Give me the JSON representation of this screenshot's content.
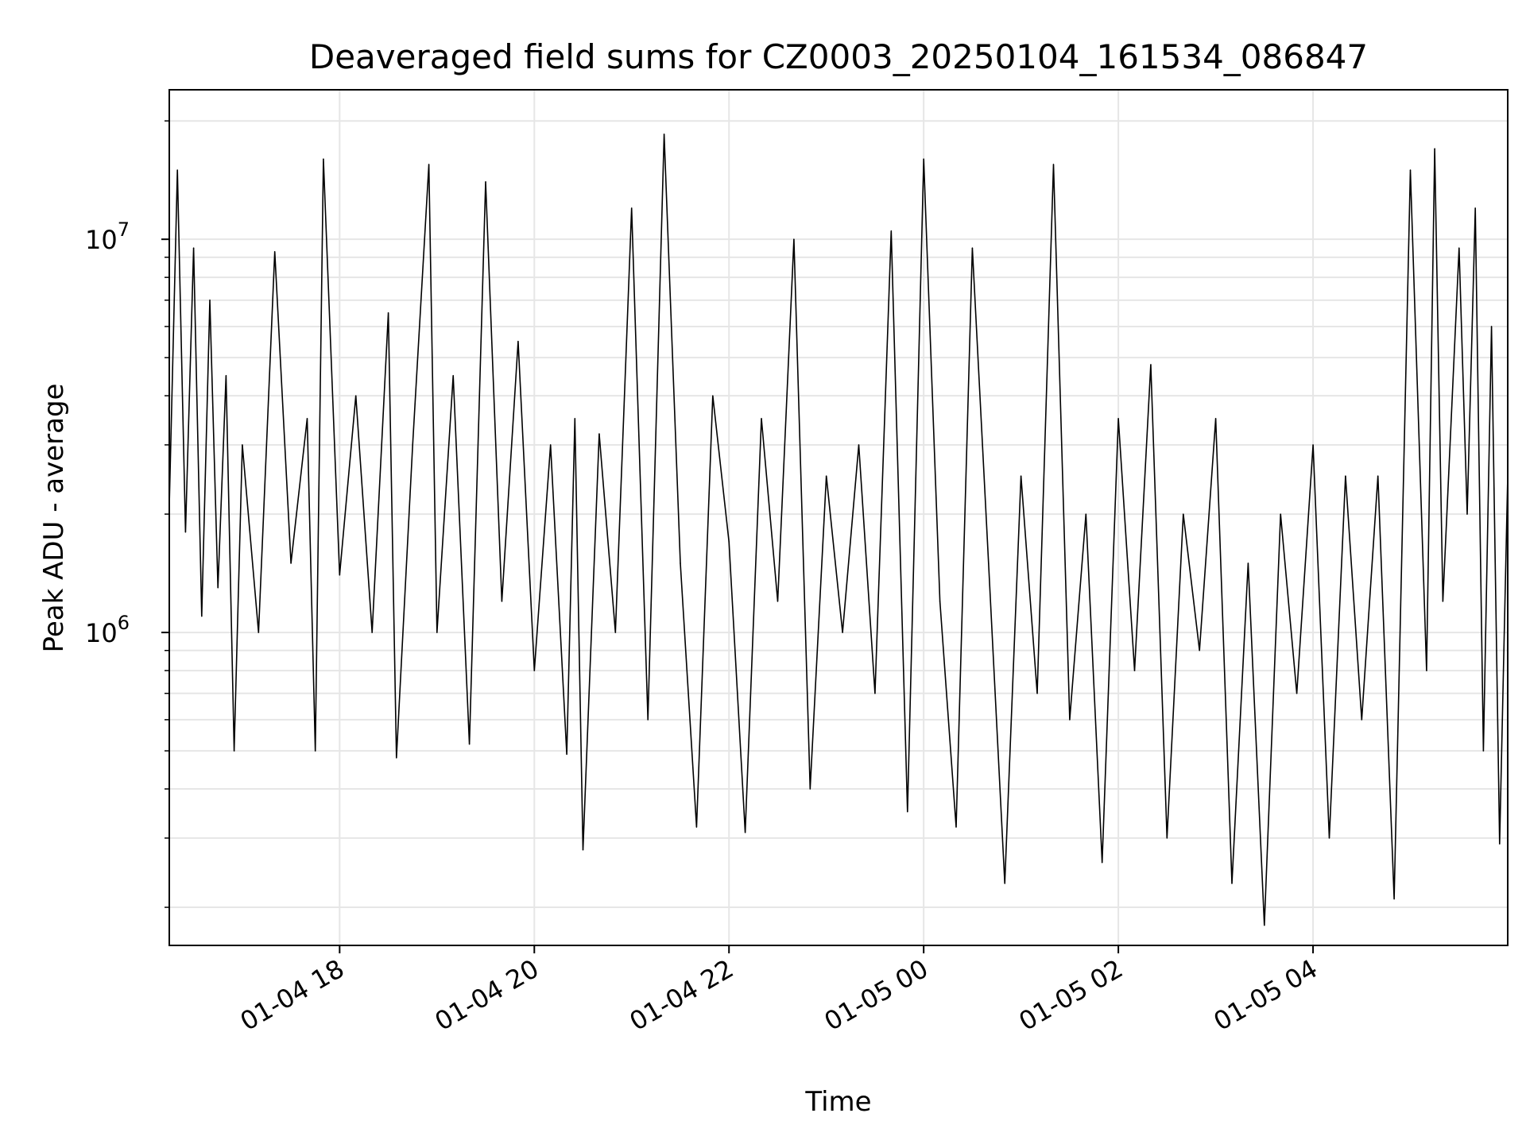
{
  "chart_data": {
    "type": "line",
    "title": "Deaveraged field sums for CZ0003_20250104_161534_086847",
    "xlabel": "Time",
    "ylabel": "Peak ADU - average",
    "yscale": "log",
    "ylim": [
      160000,
      24000000
    ],
    "xlim": [
      "2025-01-04 16:15",
      "2025-01-05 06:00"
    ],
    "grid": true,
    "x_ticks": [
      {
        "t": "2025-01-04 18:00",
        "label": "01-04 18"
      },
      {
        "t": "2025-01-04 20:00",
        "label": "01-04 20"
      },
      {
        "t": "2025-01-04 22:00",
        "label": "01-04 22"
      },
      {
        "t": "2025-01-05 00:00",
        "label": "01-05 00"
      },
      {
        "t": "2025-01-05 02:00",
        "label": "01-05 02"
      },
      {
        "t": "2025-01-05 04:00",
        "label": "01-05 04"
      }
    ],
    "y_ticks": [
      {
        "value": 1000000,
        "base": "10",
        "exp": "6"
      },
      {
        "value": 10000000,
        "base": "10",
        "exp": "7"
      }
    ],
    "series": [
      {
        "color": "#000000",
        "points": [
          [
            "2025-01-04 16:15",
            2100000
          ],
          [
            "2025-01-04 16:20",
            15000000
          ],
          [
            "2025-01-04 16:25",
            1800000
          ],
          [
            "2025-01-04 16:30",
            9500000
          ],
          [
            "2025-01-04 16:35",
            1100000
          ],
          [
            "2025-01-04 16:40",
            7000000
          ],
          [
            "2025-01-04 16:45",
            1300000
          ],
          [
            "2025-01-04 16:50",
            4500000
          ],
          [
            "2025-01-04 16:55",
            500000
          ],
          [
            "2025-01-04 17:00",
            3000000
          ],
          [
            "2025-01-04 17:10",
            1000000
          ],
          [
            "2025-01-04 17:20",
            9300000
          ],
          [
            "2025-01-04 17:30",
            1500000
          ],
          [
            "2025-01-04 17:40",
            3500000
          ],
          [
            "2025-01-04 17:45",
            500000
          ],
          [
            "2025-01-04 17:50",
            16000000
          ],
          [
            "2025-01-04 18:00",
            1400000
          ],
          [
            "2025-01-04 18:10",
            4000000
          ],
          [
            "2025-01-04 18:20",
            1000000
          ],
          [
            "2025-01-04 18:30",
            6500000
          ],
          [
            "2025-01-04 18:35",
            480000
          ],
          [
            "2025-01-04 18:45",
            3000000
          ],
          [
            "2025-01-04 18:55",
            15500000
          ],
          [
            "2025-01-04 19:00",
            1000000
          ],
          [
            "2025-01-04 19:10",
            4500000
          ],
          [
            "2025-01-04 19:20",
            520000
          ],
          [
            "2025-01-04 19:30",
            14000000
          ],
          [
            "2025-01-04 19:40",
            1200000
          ],
          [
            "2025-01-04 19:50",
            5500000
          ],
          [
            "2025-01-04 20:00",
            800000
          ],
          [
            "2025-01-04 20:10",
            3000000
          ],
          [
            "2025-01-04 20:20",
            490000
          ],
          [
            "2025-01-04 20:25",
            3500000
          ],
          [
            "2025-01-04 20:30",
            280000
          ],
          [
            "2025-01-04 20:40",
            3200000
          ],
          [
            "2025-01-04 20:50",
            1000000
          ],
          [
            "2025-01-04 21:00",
            12000000
          ],
          [
            "2025-01-04 21:10",
            600000
          ],
          [
            "2025-01-04 21:20",
            18500000
          ],
          [
            "2025-01-04 21:30",
            1500000
          ],
          [
            "2025-01-04 21:40",
            320000
          ],
          [
            "2025-01-04 21:50",
            4000000
          ],
          [
            "2025-01-04 22:00",
            1700000
          ],
          [
            "2025-01-04 22:10",
            310000
          ],
          [
            "2025-01-04 22:20",
            3500000
          ],
          [
            "2025-01-04 22:30",
            1200000
          ],
          [
            "2025-01-04 22:40",
            10000000
          ],
          [
            "2025-01-04 22:50",
            400000
          ],
          [
            "2025-01-04 23:00",
            2500000
          ],
          [
            "2025-01-04 23:10",
            1000000
          ],
          [
            "2025-01-04 23:20",
            3000000
          ],
          [
            "2025-01-04 23:30",
            700000
          ],
          [
            "2025-01-04 23:40",
            10500000
          ],
          [
            "2025-01-04 23:50",
            350000
          ],
          [
            "2025-01-05 00:00",
            16000000
          ],
          [
            "2025-01-05 00:10",
            1200000
          ],
          [
            "2025-01-05 00:20",
            320000
          ],
          [
            "2025-01-05 00:30",
            9500000
          ],
          [
            "2025-01-05 00:40",
            1500000
          ],
          [
            "2025-01-05 00:50",
            230000
          ],
          [
            "2025-01-05 01:00",
            2500000
          ],
          [
            "2025-01-05 01:10",
            700000
          ],
          [
            "2025-01-05 01:20",
            15500000
          ],
          [
            "2025-01-05 01:30",
            600000
          ],
          [
            "2025-01-05 01:40",
            2000000
          ],
          [
            "2025-01-05 01:50",
            260000
          ],
          [
            "2025-01-05 02:00",
            3500000
          ],
          [
            "2025-01-05 02:10",
            800000
          ],
          [
            "2025-01-05 02:20",
            4800000
          ],
          [
            "2025-01-05 02:30",
            300000
          ],
          [
            "2025-01-05 02:40",
            2000000
          ],
          [
            "2025-01-05 02:50",
            900000
          ],
          [
            "2025-01-05 03:00",
            3500000
          ],
          [
            "2025-01-05 03:10",
            230000
          ],
          [
            "2025-01-05 03:20",
            1500000
          ],
          [
            "2025-01-05 03:30",
            180000
          ],
          [
            "2025-01-05 03:40",
            2000000
          ],
          [
            "2025-01-05 03:50",
            700000
          ],
          [
            "2025-01-05 04:00",
            3000000
          ],
          [
            "2025-01-05 04:10",
            300000
          ],
          [
            "2025-01-05 04:20",
            2500000
          ],
          [
            "2025-01-05 04:30",
            600000
          ],
          [
            "2025-01-05 04:40",
            2500000
          ],
          [
            "2025-01-05 04:50",
            210000
          ],
          [
            "2025-01-05 05:00",
            15000000
          ],
          [
            "2025-01-05 05:10",
            800000
          ],
          [
            "2025-01-05 05:15",
            17000000
          ],
          [
            "2025-01-05 05:20",
            1200000
          ],
          [
            "2025-01-05 05:30",
            9500000
          ],
          [
            "2025-01-05 05:35",
            2000000
          ],
          [
            "2025-01-05 05:40",
            12000000
          ],
          [
            "2025-01-05 05:45",
            500000
          ],
          [
            "2025-01-05 05:50",
            6000000
          ],
          [
            "2025-01-05 05:55",
            290000
          ],
          [
            "2025-01-05 06:00",
            2500000
          ]
        ]
      }
    ]
  }
}
